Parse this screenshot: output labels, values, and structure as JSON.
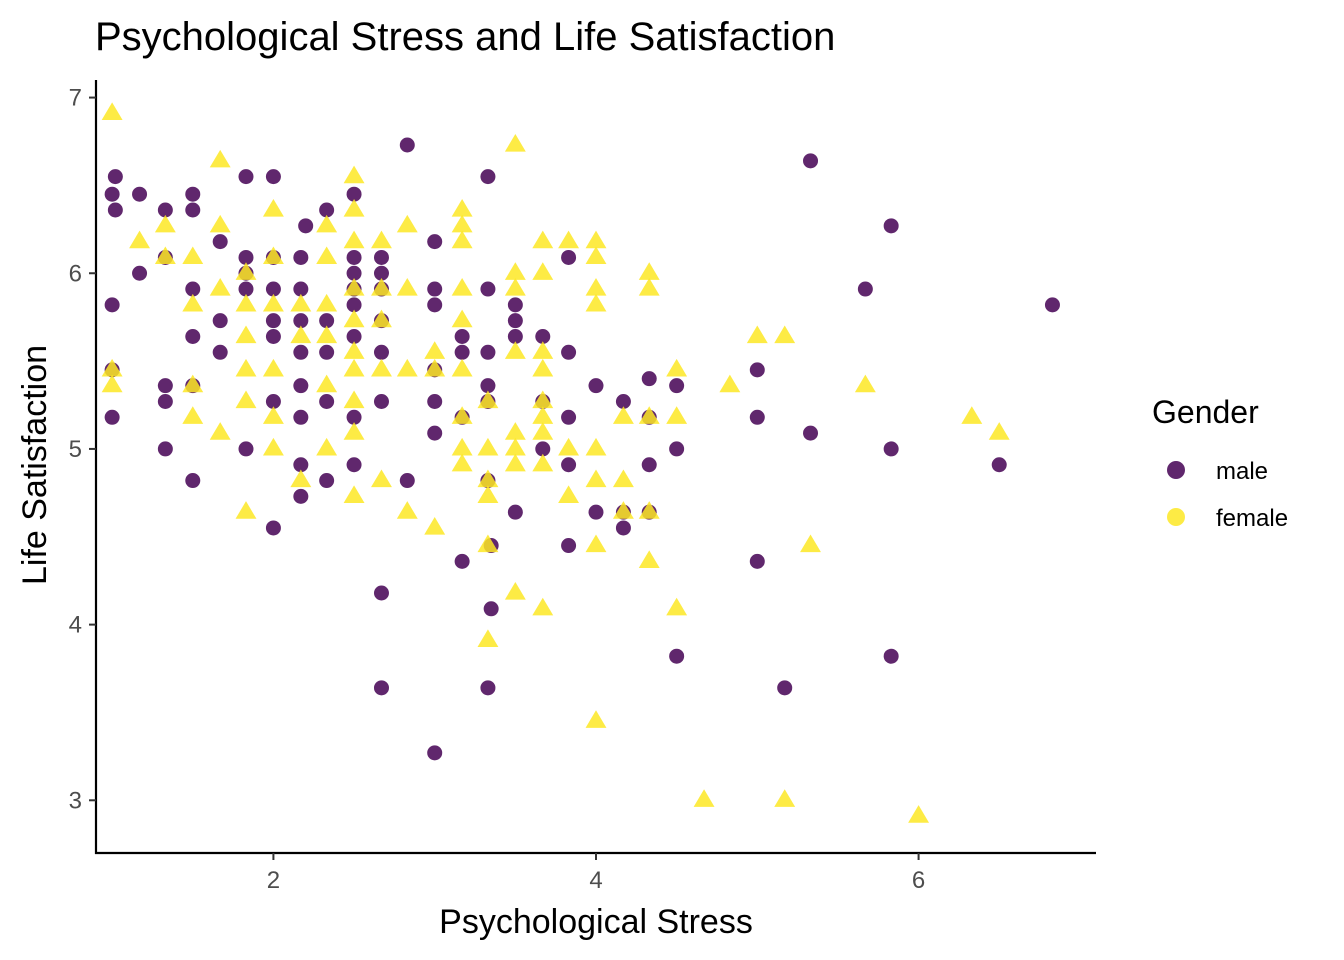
{
  "chart_data": {
    "type": "scatter",
    "title": "Psychological Stress and Life Satisfaction",
    "xlabel": "Psychological Stress",
    "ylabel": "Life Satisfaction",
    "xlim": [
      0.9,
      7.1
    ],
    "ylim": [
      2.7,
      7.1
    ],
    "x_ticks": [
      2,
      4,
      6
    ],
    "y_ticks": [
      3,
      4,
      5,
      6,
      7
    ],
    "grid": false,
    "legend": {
      "title": "Gender",
      "placement": "right"
    },
    "series": [
      {
        "name": "male",
        "color": "#440154",
        "marker": "circle",
        "points": [
          [
            1.0,
            5.45
          ],
          [
            1.0,
            5.18
          ],
          [
            1.0,
            5.82
          ],
          [
            1.0,
            6.45
          ],
          [
            1.02,
            6.55
          ],
          [
            1.02,
            6.36
          ],
          [
            1.17,
            6.45
          ],
          [
            1.17,
            6.0
          ],
          [
            1.33,
            6.36
          ],
          [
            1.33,
            6.09
          ],
          [
            1.33,
            5.36
          ],
          [
            1.33,
            5.27
          ],
          [
            1.33,
            5.0
          ],
          [
            1.5,
            6.45
          ],
          [
            1.5,
            6.36
          ],
          [
            1.5,
            5.91
          ],
          [
            1.5,
            5.64
          ],
          [
            1.5,
            5.36
          ],
          [
            1.5,
            4.82
          ],
          [
            1.67,
            6.18
          ],
          [
            1.67,
            5.73
          ],
          [
            1.67,
            5.55
          ],
          [
            1.83,
            6.55
          ],
          [
            1.83,
            6.09
          ],
          [
            1.83,
            6.0
          ],
          [
            1.83,
            5.91
          ],
          [
            1.83,
            5.0
          ],
          [
            2.0,
            6.55
          ],
          [
            2.0,
            6.09
          ],
          [
            2.0,
            5.91
          ],
          [
            2.0,
            5.73
          ],
          [
            2.0,
            5.64
          ],
          [
            2.0,
            5.27
          ],
          [
            2.0,
            4.55
          ],
          [
            2.17,
            6.09
          ],
          [
            2.17,
            5.91
          ],
          [
            2.17,
            5.73
          ],
          [
            2.17,
            5.55
          ],
          [
            2.17,
            5.36
          ],
          [
            2.17,
            5.18
          ],
          [
            2.17,
            4.91
          ],
          [
            2.17,
            4.73
          ],
          [
            2.2,
            6.27
          ],
          [
            2.33,
            6.36
          ],
          [
            2.33,
            5.73
          ],
          [
            2.33,
            5.55
          ],
          [
            2.33,
            5.27
          ],
          [
            2.33,
            4.82
          ],
          [
            2.5,
            6.45
          ],
          [
            2.5,
            6.09
          ],
          [
            2.5,
            6.0
          ],
          [
            2.5,
            5.91
          ],
          [
            2.5,
            5.82
          ],
          [
            2.5,
            5.64
          ],
          [
            2.5,
            5.18
          ],
          [
            2.5,
            4.91
          ],
          [
            2.67,
            6.09
          ],
          [
            2.67,
            6.0
          ],
          [
            2.67,
            5.91
          ],
          [
            2.67,
            5.73
          ],
          [
            2.67,
            5.55
          ],
          [
            2.67,
            5.27
          ],
          [
            2.67,
            4.18
          ],
          [
            2.67,
            3.64
          ],
          [
            2.83,
            6.73
          ],
          [
            2.83,
            4.82
          ],
          [
            3.0,
            6.18
          ],
          [
            3.0,
            5.91
          ],
          [
            3.0,
            5.82
          ],
          [
            3.0,
            5.45
          ],
          [
            3.0,
            5.27
          ],
          [
            3.0,
            5.09
          ],
          [
            3.0,
            3.27
          ],
          [
            3.17,
            5.64
          ],
          [
            3.17,
            5.55
          ],
          [
            3.17,
            5.18
          ],
          [
            3.17,
            4.36
          ],
          [
            3.33,
            6.55
          ],
          [
            3.33,
            5.91
          ],
          [
            3.33,
            5.55
          ],
          [
            3.33,
            5.36
          ],
          [
            3.33,
            5.27
          ],
          [
            3.33,
            4.82
          ],
          [
            3.33,
            3.64
          ],
          [
            3.35,
            4.45
          ],
          [
            3.35,
            4.09
          ],
          [
            3.5,
            5.82
          ],
          [
            3.5,
            5.73
          ],
          [
            3.5,
            5.64
          ],
          [
            3.5,
            4.64
          ],
          [
            3.67,
            5.64
          ],
          [
            3.67,
            5.27
          ],
          [
            3.67,
            5.0
          ],
          [
            3.83,
            6.09
          ],
          [
            3.83,
            5.55
          ],
          [
            3.83,
            5.18
          ],
          [
            3.83,
            4.91
          ],
          [
            3.83,
            4.45
          ],
          [
            4.0,
            5.36
          ],
          [
            4.0,
            4.64
          ],
          [
            4.17,
            5.27
          ],
          [
            4.17,
            4.64
          ],
          [
            4.17,
            4.55
          ],
          [
            4.33,
            5.4
          ],
          [
            4.33,
            5.18
          ],
          [
            4.33,
            4.91
          ],
          [
            4.33,
            4.64
          ],
          [
            4.5,
            5.36
          ],
          [
            4.5,
            5.0
          ],
          [
            4.5,
            3.82
          ],
          [
            5.0,
            5.45
          ],
          [
            5.0,
            5.18
          ],
          [
            5.0,
            4.36
          ],
          [
            5.17,
            3.64
          ],
          [
            5.33,
            6.64
          ],
          [
            5.33,
            5.09
          ],
          [
            5.67,
            5.91
          ],
          [
            5.83,
            6.27
          ],
          [
            5.83,
            5.0
          ],
          [
            5.83,
            3.82
          ],
          [
            6.5,
            4.91
          ],
          [
            6.83,
            5.82
          ]
        ]
      },
      {
        "name": "female",
        "color": "#FDE725",
        "marker": "triangle",
        "points": [
          [
            1.0,
            6.91
          ],
          [
            1.0,
            5.45
          ],
          [
            1.0,
            5.36
          ],
          [
            1.17,
            6.18
          ],
          [
            1.33,
            6.27
          ],
          [
            1.33,
            6.09
          ],
          [
            1.5,
            6.09
          ],
          [
            1.5,
            5.82
          ],
          [
            1.5,
            5.36
          ],
          [
            1.5,
            5.18
          ],
          [
            1.67,
            6.64
          ],
          [
            1.67,
            6.27
          ],
          [
            1.67,
            5.91
          ],
          [
            1.67,
            5.09
          ],
          [
            1.83,
            6.0
          ],
          [
            1.83,
            5.82
          ],
          [
            1.83,
            5.64
          ],
          [
            1.83,
            5.45
          ],
          [
            1.83,
            5.27
          ],
          [
            1.83,
            4.64
          ],
          [
            2.0,
            6.36
          ],
          [
            2.0,
            6.09
          ],
          [
            2.0,
            5.82
          ],
          [
            2.0,
            5.45
          ],
          [
            2.0,
            5.18
          ],
          [
            2.0,
            5.0
          ],
          [
            2.17,
            5.82
          ],
          [
            2.17,
            5.64
          ],
          [
            2.17,
            4.82
          ],
          [
            2.33,
            6.27
          ],
          [
            2.33,
            6.09
          ],
          [
            2.33,
            5.82
          ],
          [
            2.33,
            5.64
          ],
          [
            2.33,
            5.36
          ],
          [
            2.33,
            5.0
          ],
          [
            2.5,
            6.55
          ],
          [
            2.5,
            6.36
          ],
          [
            2.5,
            6.18
          ],
          [
            2.5,
            5.91
          ],
          [
            2.5,
            5.73
          ],
          [
            2.5,
            5.55
          ],
          [
            2.5,
            5.45
          ],
          [
            2.5,
            5.27
          ],
          [
            2.5,
            5.09
          ],
          [
            2.5,
            4.73
          ],
          [
            2.67,
            6.18
          ],
          [
            2.67,
            5.91
          ],
          [
            2.67,
            5.73
          ],
          [
            2.67,
            5.45
          ],
          [
            2.67,
            4.82
          ],
          [
            2.83,
            6.27
          ],
          [
            2.83,
            5.91
          ],
          [
            2.83,
            5.45
          ],
          [
            2.83,
            4.64
          ],
          [
            3.0,
            5.55
          ],
          [
            3.0,
            5.45
          ],
          [
            3.0,
            4.55
          ],
          [
            3.17,
            6.36
          ],
          [
            3.17,
            6.27
          ],
          [
            3.17,
            6.18
          ],
          [
            3.17,
            5.91
          ],
          [
            3.17,
            5.73
          ],
          [
            3.17,
            5.45
          ],
          [
            3.17,
            5.18
          ],
          [
            3.17,
            5.0
          ],
          [
            3.17,
            4.91
          ],
          [
            3.33,
            5.27
          ],
          [
            3.33,
            5.0
          ],
          [
            3.33,
            4.82
          ],
          [
            3.33,
            4.73
          ],
          [
            3.33,
            4.45
          ],
          [
            3.33,
            3.91
          ],
          [
            3.5,
            6.73
          ],
          [
            3.5,
            6.0
          ],
          [
            3.5,
            5.91
          ],
          [
            3.5,
            5.55
          ],
          [
            3.5,
            5.09
          ],
          [
            3.5,
            5.0
          ],
          [
            3.5,
            4.91
          ],
          [
            3.5,
            4.18
          ],
          [
            3.67,
            6.18
          ],
          [
            3.67,
            6.0
          ],
          [
            3.67,
            5.55
          ],
          [
            3.67,
            5.45
          ],
          [
            3.67,
            5.27
          ],
          [
            3.67,
            5.18
          ],
          [
            3.67,
            5.09
          ],
          [
            3.67,
            4.91
          ],
          [
            3.67,
            4.09
          ],
          [
            3.83,
            6.18
          ],
          [
            3.83,
            5.0
          ],
          [
            3.83,
            4.73
          ],
          [
            4.0,
            6.18
          ],
          [
            4.0,
            6.09
          ],
          [
            4.0,
            5.91
          ],
          [
            4.0,
            5.82
          ],
          [
            4.0,
            5.0
          ],
          [
            4.0,
            4.82
          ],
          [
            4.0,
            4.45
          ],
          [
            4.0,
            3.45
          ],
          [
            4.17,
            5.18
          ],
          [
            4.17,
            4.82
          ],
          [
            4.17,
            4.64
          ],
          [
            4.33,
            6.0
          ],
          [
            4.33,
            5.91
          ],
          [
            4.33,
            5.18
          ],
          [
            4.33,
            4.64
          ],
          [
            4.33,
            4.36
          ],
          [
            4.5,
            5.45
          ],
          [
            4.5,
            5.18
          ],
          [
            4.5,
            4.09
          ],
          [
            4.67,
            3.0
          ],
          [
            4.83,
            5.36
          ],
          [
            5.0,
            5.64
          ],
          [
            5.17,
            5.64
          ],
          [
            5.17,
            3.0
          ],
          [
            5.33,
            4.45
          ],
          [
            5.67,
            5.36
          ],
          [
            6.0,
            2.91
          ],
          [
            6.33,
            5.18
          ],
          [
            6.5,
            5.09
          ]
        ]
      }
    ]
  }
}
